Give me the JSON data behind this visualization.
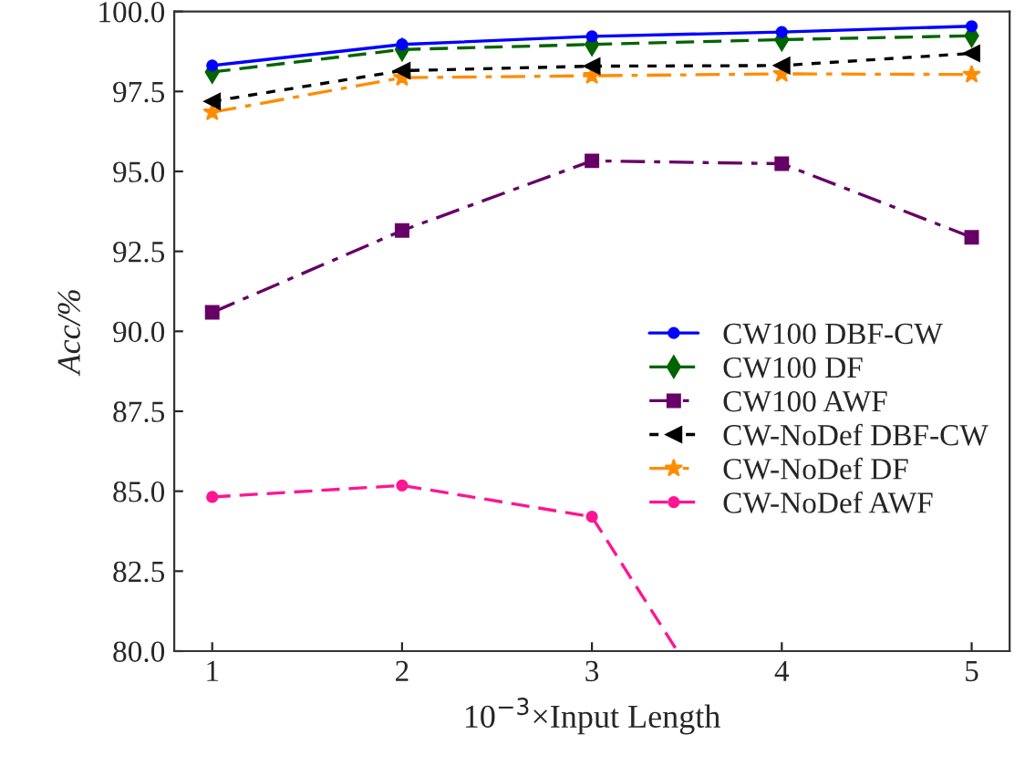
{
  "chart_data": {
    "type": "line",
    "xlabel": "10$^{−3}$×Input Length",
    "ylabel": "Acc/%",
    "x": [
      1,
      2,
      3,
      4,
      5
    ],
    "xlim": [
      0.8,
      5.2
    ],
    "xticks": [
      1,
      2,
      3,
      4,
      5
    ],
    "ylim": [
      80,
      100
    ],
    "yticks": [
      {
        "value": 80,
        "label": "80.0"
      },
      {
        "value": 82.5,
        "label": "82.5"
      },
      {
        "value": 85,
        "label": "85.0"
      },
      {
        "value": 87.5,
        "label": "87.5"
      },
      {
        "value": 90,
        "label": "90.0"
      },
      {
        "value": 92.5,
        "label": "92.5"
      },
      {
        "value": 95,
        "label": "95.0"
      },
      {
        "value": 97.5,
        "label": "97.5"
      },
      {
        "value": 100,
        "label": "100.0"
      }
    ],
    "grid": false,
    "legend": "right",
    "series": [
      {
        "name": "CW100 DBF-CW",
        "color": "#0000ff",
        "marker": "circle",
        "line_style": "solid",
        "values": [
          98.31,
          98.97,
          99.22,
          99.36,
          99.54
        ]
      },
      {
        "name": "CW100 DF",
        "color": "#006400",
        "marker": "diamond",
        "line_style": "dashed",
        "values": [
          98.11,
          98.81,
          98.97,
          99.12,
          99.24
        ]
      },
      {
        "name": "CW100 AWF",
        "color": "#660066",
        "marker": "square",
        "line_style": "dashdot",
        "values": [
          90.59,
          93.15,
          95.33,
          95.24,
          92.94
        ]
      },
      {
        "name": "CW-NoDef DBF-CW",
        "color": "#000000",
        "marker": "triangle",
        "line_style": "dotted",
        "values": [
          97.19,
          98.15,
          98.29,
          98.31,
          98.69
        ]
      },
      {
        "name": "CW-NoDef DF",
        "color": "#ff8c00",
        "marker": "star",
        "line_style": "dashdot",
        "values": [
          96.85,
          97.93,
          97.99,
          98.05,
          98.03
        ]
      },
      {
        "name": "CW-NoDef AWF",
        "color": "#ff1493",
        "marker": "circle",
        "line_style": "dashed",
        "x": [
          1,
          2,
          3,
          3.45
        ],
        "values": [
          84.82,
          85.18,
          84.2,
          80.0
        ]
      }
    ]
  }
}
